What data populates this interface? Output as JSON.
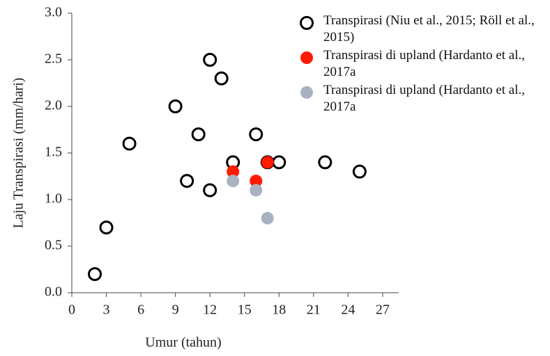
{
  "chart_data": {
    "type": "scatter",
    "xlabel": "Umur (tahun)",
    "ylabel": "Laju Transpirasi (mm/hari)",
    "xlim": [
      0,
      28.4
    ],
    "xticks": [
      0,
      3,
      6,
      9,
      12,
      15,
      18,
      21,
      24,
      27
    ],
    "ylim": [
      0,
      3
    ],
    "yticks": [
      {
        "value": 0,
        "label": "0.0"
      },
      0.5,
      {
        "value": 1,
        "label": "1.0"
      },
      1.5,
      {
        "value": 2,
        "label": "2.0"
      },
      2.5,
      {
        "value": 3,
        "label": "3.0"
      }
    ],
    "grid": false,
    "legend": "upper right",
    "series": [
      {
        "name": "Transpirasi (Niu et al., 2015; Röll et al., 2015)",
        "color": "#000000",
        "marker": "open",
        "x": [
          2,
          3,
          5,
          9,
          10,
          11,
          12,
          12,
          13,
          14,
          16,
          17,
          18,
          22,
          25
        ],
        "values": [
          0.2,
          0.7,
          1.6,
          2.0,
          1.2,
          1.7,
          2.5,
          1.1,
          2.3,
          1.4,
          1.7,
          1.4,
          1.4,
          1.4,
          1.3
        ]
      },
      {
        "name": "Transpirasi di upland (Hardanto et al., 2017a",
        "color": "#ff1a00",
        "marker": "filled",
        "x": [
          14,
          16,
          17
        ],
        "values": [
          1.3,
          1.2,
          1.4
        ]
      },
      {
        "name": "Transpirasi di upland (Hardanto et al., 2017a",
        "color": "#a9b2c0",
        "marker": "filled",
        "x": [
          14,
          16,
          17
        ],
        "values": [
          1.2,
          1.1,
          0.8
        ]
      }
    ]
  }
}
